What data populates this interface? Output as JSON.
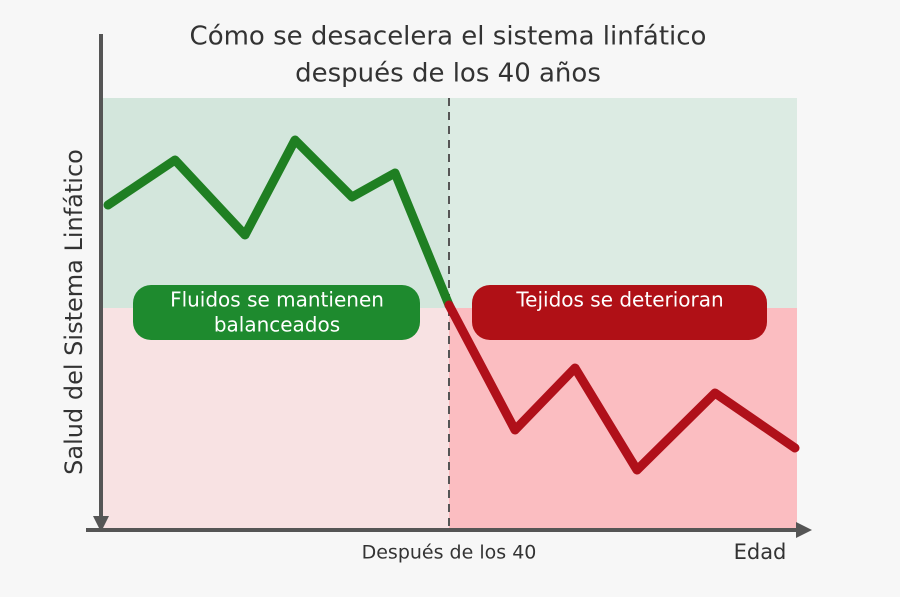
{
  "title": {
    "lines": [
      "Cómo se desacelera el sistema linfático",
      "después de los 40 años"
    ]
  },
  "y_axis_label": "Salud del Sistema Linfático",
  "x_axis": {
    "marker_label": "Después de los 40",
    "label": "Edad"
  },
  "zones": [
    {
      "label_lines": [
        "Fluidos se mantienen",
        "balanceados"
      ]
    },
    {
      "label_lines": [
        "Tejidos se deterioran"
      ]
    }
  ]
}
